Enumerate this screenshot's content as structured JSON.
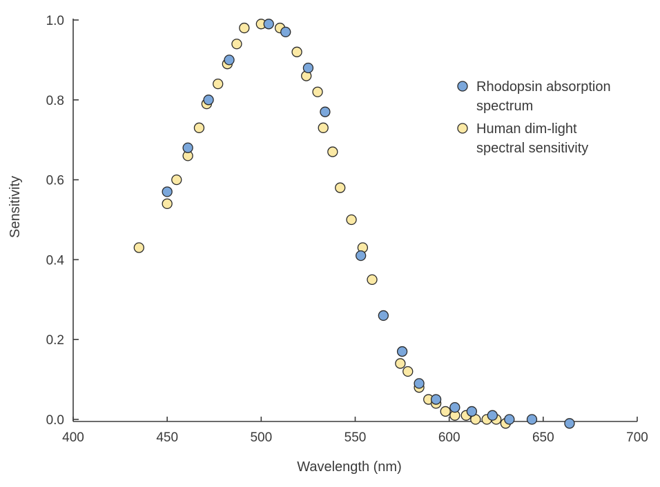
{
  "chart_data": {
    "type": "scatter",
    "title": "",
    "xlabel": "Wavelength (nm)",
    "ylabel": "Sensitivity",
    "xlim": [
      400,
      700
    ],
    "ylim": [
      0.0,
      1.0
    ],
    "xticks": [
      400,
      450,
      500,
      550,
      600,
      650,
      700
    ],
    "xtick_labels": [
      "400",
      "450",
      "500",
      "550",
      "600",
      "650",
      "700"
    ],
    "yticks": [
      0.0,
      0.2,
      0.4,
      0.6,
      0.8,
      1.0
    ],
    "ytick_labels": [
      "0.0",
      "0.2",
      "0.4",
      "0.6",
      "0.8",
      "1.0"
    ],
    "grid": false,
    "legend_position": "right",
    "series": [
      {
        "name": "Human dim-light spectral sensitivity",
        "legend_lines": [
          "Human dim-light",
          "spectral sensitivity"
        ],
        "color": "#FBE9A5",
        "points": [
          [
            435,
            0.43
          ],
          [
            450,
            0.54
          ],
          [
            455,
            0.6
          ],
          [
            461,
            0.66
          ],
          [
            467,
            0.73
          ],
          [
            471,
            0.79
          ],
          [
            477,
            0.84
          ],
          [
            482,
            0.89
          ],
          [
            487,
            0.94
          ],
          [
            491,
            0.98
          ],
          [
            500,
            0.99
          ],
          [
            510,
            0.98
          ],
          [
            519,
            0.92
          ],
          [
            524,
            0.86
          ],
          [
            530,
            0.82
          ],
          [
            533,
            0.73
          ],
          [
            538,
            0.67
          ],
          [
            542,
            0.58
          ],
          [
            548,
            0.5
          ],
          [
            554,
            0.43
          ],
          [
            559,
            0.35
          ],
          [
            574,
            0.14
          ],
          [
            578,
            0.12
          ],
          [
            584,
            0.08
          ],
          [
            589,
            0.05
          ],
          [
            593,
            0.04
          ],
          [
            598,
            0.02
          ],
          [
            603,
            0.01
          ],
          [
            609,
            0.01
          ],
          [
            614,
            0.0
          ],
          [
            620,
            0.0
          ],
          [
            625,
            0.0
          ],
          [
            630,
            -0.01
          ]
        ]
      },
      {
        "name": "Rhodopsin absorption spectrum",
        "legend_lines": [
          "Rhodopsin absorption",
          "spectrum"
        ],
        "color": "#7BA7DB",
        "points": [
          [
            450,
            0.57
          ],
          [
            461,
            0.68
          ],
          [
            472,
            0.8
          ],
          [
            483,
            0.9
          ],
          [
            504,
            0.99
          ],
          [
            513,
            0.97
          ],
          [
            525,
            0.88
          ],
          [
            534,
            0.77
          ],
          [
            553,
            0.41
          ],
          [
            565,
            0.26
          ],
          [
            575,
            0.17
          ],
          [
            584,
            0.09
          ],
          [
            593,
            0.05
          ],
          [
            603,
            0.03
          ],
          [
            612,
            0.02
          ],
          [
            623,
            0.01
          ],
          [
            632,
            0.0
          ],
          [
            644,
            0.0
          ],
          [
            664,
            -0.01
          ]
        ]
      }
    ],
    "legend_order": [
      1,
      0
    ]
  }
}
